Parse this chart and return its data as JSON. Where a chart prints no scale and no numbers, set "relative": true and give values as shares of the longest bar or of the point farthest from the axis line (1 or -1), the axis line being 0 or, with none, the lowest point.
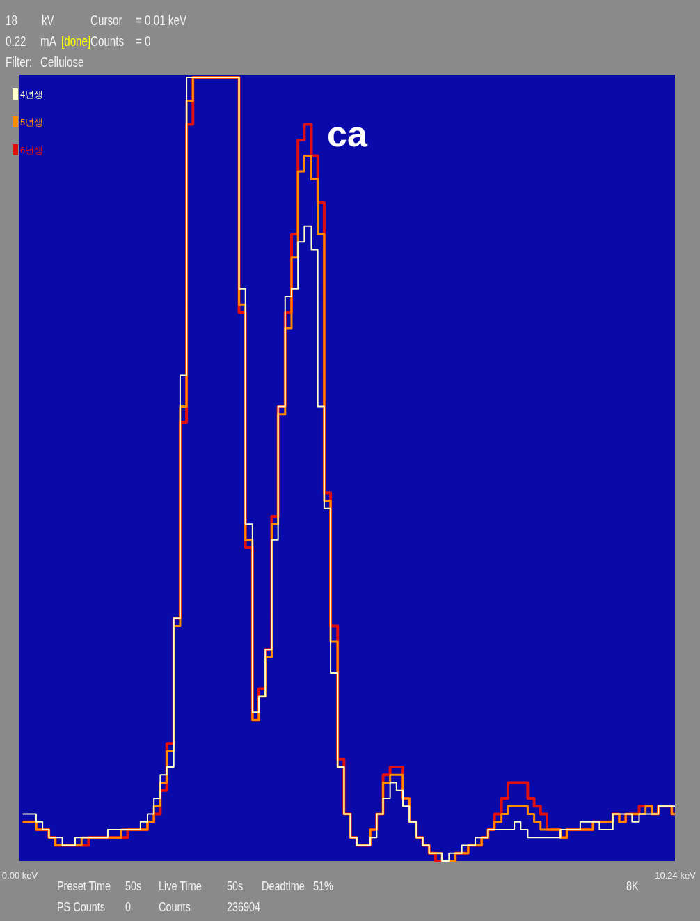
{
  "chart_data": {
    "type": "step",
    "relative": true,
    "legend": "top left",
    "xlim": [
      0,
      10.24
    ],
    "xticks": [
      {
        "value": 0,
        "label": "0.00 keV"
      },
      {
        "value": 10.24,
        "label": "10.24 keV"
      }
    ],
    "x": [
      0.05,
      0.15,
      0.26,
      0.36,
      0.46,
      0.56,
      0.67,
      0.77,
      0.87,
      0.97,
      1.08,
      1.18,
      1.28,
      1.38,
      1.49,
      1.59,
      1.69,
      1.79,
      1.89,
      2.0,
      2.1,
      2.2,
      2.3,
      2.41,
      2.51,
      2.61,
      2.71,
      2.82,
      2.92,
      3.02,
      3.12,
      3.23,
      3.33,
      3.43,
      3.53,
      3.64,
      3.74,
      3.84,
      3.94,
      4.04,
      4.15,
      4.25,
      4.35,
      4.45,
      4.56,
      4.66,
      4.76,
      4.86,
      4.97,
      5.07,
      5.17,
      5.27,
      5.38,
      5.48,
      5.58,
      5.68,
      5.79,
      5.89,
      5.99,
      6.09,
      6.2,
      6.3,
      6.4,
      6.5,
      6.6,
      6.71,
      6.81,
      6.91,
      7.01,
      7.12,
      7.22,
      7.32,
      7.42,
      7.53,
      7.63,
      7.73,
      7.83,
      7.94,
      8.04,
      8.14,
      8.24,
      8.35,
      8.45,
      8.55,
      8.65,
      8.76,
      8.86,
      8.96,
      9.06,
      9.17,
      9.27,
      9.37,
      9.47,
      9.57,
      9.68,
      9.78,
      9.88,
      9.98,
      10.09,
      10.19
    ],
    "series": [
      {
        "name": "4년생",
        "color": "#ffffcc",
        "values": [
          0.06,
          0.06,
          0.05,
          0.04,
          0.03,
          0.03,
          0.02,
          0.02,
          0.03,
          0.03,
          0.03,
          0.03,
          0.03,
          0.04,
          0.04,
          0.04,
          0.04,
          0.04,
          0.05,
          0.06,
          0.08,
          0.11,
          0.12,
          0.31,
          0.62,
          1,
          1,
          1,
          1,
          1,
          1,
          1,
          1,
          0.73,
          0.43,
          0.19,
          0.21,
          0.27,
          0.41,
          0.58,
          0.72,
          0.73,
          0.79,
          0.81,
          0.78,
          0.58,
          0.45,
          0.24,
          0.12,
          0.06,
          0.03,
          0.02,
          0.02,
          0.03,
          0.06,
          0.08,
          0.1,
          0.09,
          0.07,
          0.05,
          0.03,
          0.02,
          0.01,
          0.01,
          0.0,
          0.01,
          0.01,
          0.02,
          0.02,
          0.03,
          0.03,
          0.04,
          0.04,
          0.04,
          0.04,
          0.05,
          0.04,
          0.03,
          0.03,
          0.03,
          0.03,
          0.03,
          0.04,
          0.04,
          0.04,
          0.05,
          0.05,
          0.05,
          0.04,
          0.04,
          0.06,
          0.06,
          0.06,
          0.05,
          0.06,
          0.06,
          0.06,
          0.07,
          0.07,
          0.07
        ]
      },
      {
        "name": "5년생",
        "color": "#ff8c00",
        "values": [
          0.05,
          0.05,
          0.04,
          0.04,
          0.03,
          0.02,
          0.02,
          0.02,
          0.02,
          0.03,
          0.03,
          0.03,
          0.03,
          0.03,
          0.03,
          0.04,
          0.04,
          0.04,
          0.04,
          0.05,
          0.07,
          0.1,
          0.14,
          0.3,
          0.58,
          0.97,
          1,
          1,
          1,
          1,
          1,
          1,
          1,
          0.71,
          0.41,
          0.18,
          0.21,
          0.26,
          0.43,
          0.57,
          0.68,
          0.77,
          0.88,
          0.9,
          0.87,
          0.8,
          0.46,
          0.28,
          0.12,
          0.06,
          0.03,
          0.02,
          0.02,
          0.04,
          0.06,
          0.1,
          0.11,
          0.11,
          0.08,
          0.05,
          0.03,
          0.02,
          0.01,
          0.01,
          0.0,
          0.0,
          0.01,
          0.01,
          0.02,
          0.02,
          0.03,
          0.04,
          0.05,
          0.06,
          0.07,
          0.07,
          0.07,
          0.06,
          0.05,
          0.04,
          0.04,
          0.04,
          0.03,
          0.04,
          0.04,
          0.04,
          0.04,
          0.05,
          0.05,
          0.05,
          0.06,
          0.05,
          0.06,
          0.06,
          0.06,
          0.07,
          0.06,
          0.07,
          0.07,
          0.06
        ]
      },
      {
        "name": "6년생",
        "color": "#e01010",
        "values": [
          0.05,
          0.05,
          0.04,
          0.04,
          0.03,
          0.02,
          0.02,
          0.02,
          0.02,
          0.02,
          0.03,
          0.03,
          0.03,
          0.03,
          0.03,
          0.03,
          0.04,
          0.04,
          0.04,
          0.05,
          0.06,
          0.09,
          0.15,
          0.31,
          0.56,
          0.94,
          1,
          1,
          1,
          1,
          1,
          1,
          1,
          0.7,
          0.4,
          0.18,
          0.22,
          0.27,
          0.44,
          0.58,
          0.7,
          0.8,
          0.92,
          0.94,
          0.9,
          0.84,
          0.47,
          0.3,
          0.13,
          0.06,
          0.03,
          0.02,
          0.02,
          0.04,
          0.06,
          0.11,
          0.12,
          0.12,
          0.08,
          0.05,
          0.03,
          0.02,
          0.01,
          0.0,
          0.0,
          0.0,
          0.01,
          0.01,
          0.02,
          0.02,
          0.03,
          0.04,
          0.06,
          0.08,
          0.1,
          0.1,
          0.1,
          0.08,
          0.07,
          0.06,
          0.04,
          0.04,
          0.03,
          0.04,
          0.04,
          0.04,
          0.04,
          0.05,
          0.05,
          0.05,
          0.06,
          0.05,
          0.06,
          0.06,
          0.07,
          0.07,
          0.06,
          0.07,
          0.07,
          0.06
        ]
      }
    ],
    "annotations": [
      "ca",
      "18",
      "kV",
      "Cursor",
      "= 0.01 keV",
      "0.22",
      "mA",
      "[done]",
      "Counts",
      "= 0",
      "Filter:",
      "Cellulose",
      "Preset Time",
      "50s",
      "Live Time",
      "50s",
      "Deadtime",
      "51%",
      "PS Counts",
      "0",
      "Counts",
      "236904",
      "8K"
    ]
  }
}
